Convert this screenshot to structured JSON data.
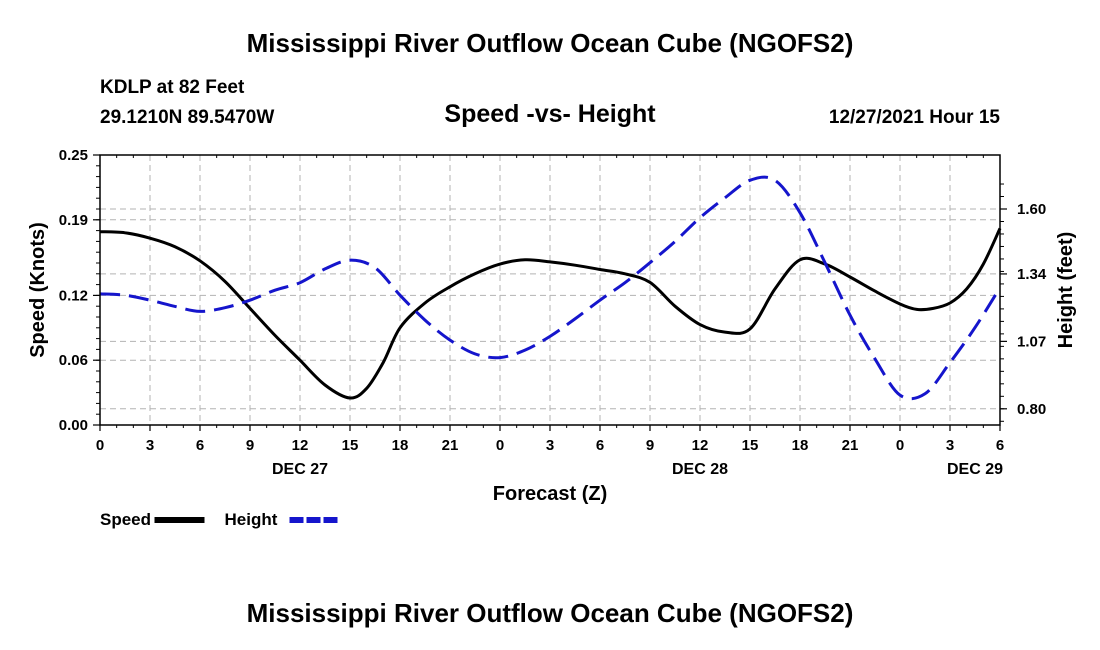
{
  "header": {
    "title": "Mississippi River Outflow Ocean Cube (NGOFS2)",
    "station": "KDLP at 82 Feet",
    "location": "29.1210N  89.5470W",
    "subtitle": "Speed -vs- Height",
    "datetime": "12/27/2021 Hour 15"
  },
  "footer": {
    "title": "Mississippi River Outflow Ocean Cube (NGOFS2)"
  },
  "chart_data": {
    "type": "line",
    "title": "Speed -vs- Height",
    "xlabel": "Forecast (Z)",
    "ylabel": "Speed (Knots)",
    "y2label": "Height (feet)",
    "x_range_hours": [
      0,
      54
    ],
    "x_tick_hours": [
      0,
      3,
      6,
      9,
      12,
      15,
      18,
      21,
      24,
      27,
      30,
      33,
      36,
      39,
      42,
      45,
      48,
      51,
      54
    ],
    "x_tick_labels": [
      "0",
      "3",
      "6",
      "9",
      "12",
      "15",
      "18",
      "21",
      "0",
      "3",
      "6",
      "9",
      "12",
      "15",
      "18",
      "21",
      "0",
      "3",
      "6"
    ],
    "date_labels": [
      {
        "hour": 12,
        "label": "DEC 27"
      },
      {
        "hour": 36,
        "label": "DEC 28"
      },
      {
        "hour": 52.5,
        "label": "DEC 29"
      }
    ],
    "ylim": [
      0.0,
      0.25
    ],
    "y_ticks": [
      0.0,
      0.06,
      0.12,
      0.19,
      0.25
    ],
    "y_tick_labels": [
      "0.00",
      "0.06",
      "0.12",
      "0.19",
      "0.25"
    ],
    "y2_ticks": [
      0.8,
      1.07,
      1.34,
      1.6
    ],
    "y2_tick_labels": [
      "0.80",
      "1.07",
      "1.34",
      "1.60"
    ],
    "y2_scale": {
      "data": [
        0.8,
        1.6
      ],
      "maps_to_speed": [
        0.015,
        0.2
      ]
    },
    "grid": true,
    "legend": {
      "position": "bottom-left"
    },
    "series": [
      {
        "name": "Speed",
        "axis": "left",
        "color": "#000000",
        "dash": "solid",
        "x": [
          0,
          1.5,
          3,
          4.5,
          6,
          7.5,
          9,
          10.5,
          12,
          13.5,
          15,
          16,
          17,
          18,
          19.5,
          21,
          22.5,
          24,
          25.5,
          27,
          28.5,
          30,
          31.5,
          33,
          34.5,
          36,
          37.5,
          39,
          40.5,
          42,
          43.5,
          45,
          46.5,
          48,
          49,
          50,
          51,
          52,
          53,
          54
        ],
        "values": [
          0.179,
          0.178,
          0.173,
          0.165,
          0.152,
          0.133,
          0.108,
          0.083,
          0.06,
          0.037,
          0.025,
          0.034,
          0.058,
          0.09,
          0.113,
          0.128,
          0.14,
          0.149,
          0.153,
          0.151,
          0.148,
          0.144,
          0.14,
          0.132,
          0.11,
          0.093,
          0.086,
          0.089,
          0.126,
          0.153,
          0.149,
          0.137,
          0.124,
          0.112,
          0.107,
          0.108,
          0.113,
          0.126,
          0.149,
          0.182
        ]
      },
      {
        "name": "Height",
        "axis": "right",
        "color": "#1515cc",
        "dash": "dashed",
        "x": [
          0,
          1.5,
          3,
          4.5,
          6,
          7.5,
          9,
          10.5,
          12,
          13.5,
          15,
          16.5,
          18,
          19.5,
          21,
          22.5,
          24,
          25.5,
          27,
          28.5,
          30,
          31.5,
          33,
          34.5,
          36,
          37.5,
          39,
          40.5,
          42,
          43.5,
          45,
          46.5,
          48,
          49.5,
          51,
          52.5,
          54
        ],
        "values": [
          1.26,
          1.255,
          1.235,
          1.21,
          1.19,
          1.205,
          1.235,
          1.275,
          1.305,
          1.36,
          1.395,
          1.365,
          1.255,
          1.155,
          1.075,
          1.02,
          1.005,
          1.035,
          1.09,
          1.16,
          1.235,
          1.305,
          1.385,
          1.47,
          1.565,
          1.645,
          1.715,
          1.715,
          1.585,
          1.385,
          1.175,
          1.0,
          0.855,
          0.86,
          0.985,
          1.125,
          1.285
        ]
      }
    ]
  }
}
